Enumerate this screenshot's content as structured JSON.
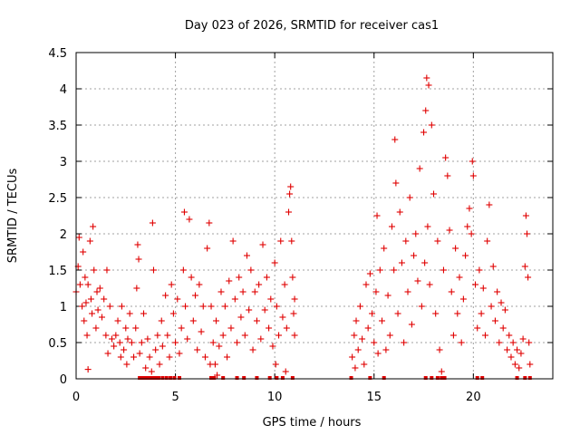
{
  "chart_data": {
    "type": "scatter",
    "title": "Day 023 of 2026, SRMTID for receiver cas1",
    "xlabel": "GPS time / hours",
    "ylabel": "SRMTID / TECUs",
    "xlim": [
      0,
      24
    ],
    "ylim": [
      0,
      4.5
    ],
    "x_ticks": [
      0,
      5,
      10,
      15,
      20
    ],
    "x_tick_labels": [
      "0",
      "5",
      "10",
      "15",
      "20"
    ],
    "y_ticks": [
      0,
      0.5,
      1,
      1.5,
      2,
      2.5,
      3,
      3.5,
      4,
      4.5
    ],
    "y_tick_labels": [
      "0",
      "0.5",
      "1",
      "1.5",
      "2",
      "2.5",
      "3",
      "3.5",
      "4",
      "4.5"
    ],
    "grid": true,
    "marker": "+",
    "color": "#e00000",
    "series": [
      {
        "name": "SRMTID",
        "points": [
          [
            0.0,
            1.2
          ],
          [
            0.1,
            1.55
          ],
          [
            0.15,
            1.95
          ],
          [
            0.2,
            1.3
          ],
          [
            0.3,
            1.0
          ],
          [
            0.35,
            1.75
          ],
          [
            0.4,
            0.8
          ],
          [
            0.45,
            1.4
          ],
          [
            0.5,
            1.05
          ],
          [
            0.55,
            0.6
          ],
          [
            0.6,
            1.3
          ],
          [
            0.6,
            0.13
          ],
          [
            0.7,
            1.9
          ],
          [
            0.75,
            1.1
          ],
          [
            0.8,
            0.9
          ],
          [
            0.85,
            2.1
          ],
          [
            0.9,
            1.5
          ],
          [
            1.0,
            0.7
          ],
          [
            1.05,
            1.2
          ],
          [
            1.1,
            0.95
          ],
          [
            1.2,
            1.25
          ],
          [
            1.3,
            0.85
          ],
          [
            1.4,
            1.1
          ],
          [
            1.5,
            0.6
          ],
          [
            1.55,
            1.5
          ],
          [
            1.6,
            0.35
          ],
          [
            1.7,
            1.0
          ],
          [
            1.8,
            0.55
          ],
          [
            1.9,
            0.45
          ],
          [
            2.0,
            0.6
          ],
          [
            2.1,
            0.8
          ],
          [
            2.2,
            0.5
          ],
          [
            2.25,
            0.3
          ],
          [
            2.3,
            1.0
          ],
          [
            2.4,
            0.4
          ],
          [
            2.5,
            0.7
          ],
          [
            2.55,
            0.2
          ],
          [
            2.6,
            0.55
          ],
          [
            2.7,
            0.9
          ],
          [
            2.8,
            0.5
          ],
          [
            2.9,
            0.3
          ],
          [
            3.0,
            0.7
          ],
          [
            3.05,
            1.25
          ],
          [
            3.1,
            1.85
          ],
          [
            3.15,
            1.65
          ],
          [
            3.2,
            0.35
          ],
          [
            3.3,
            0.5
          ],
          [
            3.4,
            0.9
          ],
          [
            3.5,
            0.15
          ],
          [
            3.6,
            0.55
          ],
          [
            3.7,
            0.3
          ],
          [
            3.8,
            0.1
          ],
          [
            3.85,
            2.15
          ],
          [
            3.9,
            1.5
          ],
          [
            4.0,
            0.4
          ],
          [
            4.1,
            0.6
          ],
          [
            4.2,
            0.2
          ],
          [
            4.3,
            0.8
          ],
          [
            4.35,
            0.45
          ],
          [
            4.5,
            1.15
          ],
          [
            4.6,
            0.6
          ],
          [
            4.7,
            0.3
          ],
          [
            4.8,
            1.3
          ],
          [
            4.9,
            0.9
          ],
          [
            5.0,
            0.5
          ],
          [
            5.1,
            1.1
          ],
          [
            5.2,
            0.35
          ],
          [
            5.3,
            0.7
          ],
          [
            5.4,
            1.5
          ],
          [
            5.45,
            2.3
          ],
          [
            5.5,
            1.0
          ],
          [
            5.6,
            0.55
          ],
          [
            5.7,
            2.2
          ],
          [
            5.8,
            1.4
          ],
          [
            5.9,
            0.8
          ],
          [
            6.0,
            1.15
          ],
          [
            6.1,
            0.4
          ],
          [
            6.2,
            1.3
          ],
          [
            6.3,
            0.65
          ],
          [
            6.4,
            1.0
          ],
          [
            6.5,
            0.3
          ],
          [
            6.6,
            1.8
          ],
          [
            6.7,
            2.15
          ],
          [
            6.75,
            0.2
          ],
          [
            6.8,
            1.0
          ],
          [
            6.9,
            0.5
          ],
          [
            7.0,
            0.2
          ],
          [
            7.05,
            0.8
          ],
          [
            7.1,
            0.05
          ],
          [
            7.2,
            0.45
          ],
          [
            7.3,
            1.2
          ],
          [
            7.4,
            0.6
          ],
          [
            7.5,
            1.0
          ],
          [
            7.6,
            0.3
          ],
          [
            7.7,
            1.35
          ],
          [
            7.8,
            0.7
          ],
          [
            7.9,
            1.9
          ],
          [
            8.0,
            1.1
          ],
          [
            8.1,
            0.5
          ],
          [
            8.2,
            1.4
          ],
          [
            8.3,
            0.85
          ],
          [
            8.4,
            1.2
          ],
          [
            8.5,
            0.6
          ],
          [
            8.6,
            1.7
          ],
          [
            8.7,
            0.95
          ],
          [
            8.8,
            1.5
          ],
          [
            8.9,
            0.4
          ],
          [
            9.0,
            1.2
          ],
          [
            9.1,
            0.8
          ],
          [
            9.2,
            1.3
          ],
          [
            9.3,
            0.55
          ],
          [
            9.4,
            1.85
          ],
          [
            9.5,
            0.95
          ],
          [
            9.6,
            1.4
          ],
          [
            9.7,
            0.7
          ],
          [
            9.8,
            1.1
          ],
          [
            9.9,
            0.45
          ],
          [
            10.0,
            1.6
          ],
          [
            10.05,
            0.2
          ],
          [
            10.1,
            1.0
          ],
          [
            10.2,
            0.6
          ],
          [
            10.3,
            1.9
          ],
          [
            10.4,
            0.85
          ],
          [
            10.5,
            1.3
          ],
          [
            10.55,
            0.1
          ],
          [
            10.6,
            0.7
          ],
          [
            10.7,
            2.3
          ],
          [
            10.75,
            2.55
          ],
          [
            10.8,
            2.65
          ],
          [
            10.85,
            1.9
          ],
          [
            10.9,
            1.4
          ],
          [
            10.95,
            0.9
          ],
          [
            11.0,
            0.6
          ],
          [
            11.0,
            1.1
          ],
          [
            13.9,
            0.3
          ],
          [
            14.0,
            0.6
          ],
          [
            14.05,
            0.15
          ],
          [
            14.1,
            0.8
          ],
          [
            14.2,
            0.4
          ],
          [
            14.3,
            1.0
          ],
          [
            14.4,
            0.55
          ],
          [
            14.5,
            0.2
          ],
          [
            14.6,
            1.3
          ],
          [
            14.7,
            0.7
          ],
          [
            14.8,
            1.45
          ],
          [
            14.9,
            0.9
          ],
          [
            15.0,
            0.5
          ],
          [
            15.1,
            1.2
          ],
          [
            15.15,
            2.25
          ],
          [
            15.2,
            0.35
          ],
          [
            15.3,
            1.5
          ],
          [
            15.4,
            0.8
          ],
          [
            15.5,
            1.8
          ],
          [
            15.6,
            0.4
          ],
          [
            15.7,
            1.15
          ],
          [
            15.8,
            0.6
          ],
          [
            15.9,
            2.1
          ],
          [
            16.0,
            1.5
          ],
          [
            16.05,
            3.3
          ],
          [
            16.1,
            2.7
          ],
          [
            16.2,
            0.9
          ],
          [
            16.3,
            2.3
          ],
          [
            16.4,
            1.6
          ],
          [
            16.5,
            0.5
          ],
          [
            16.6,
            1.9
          ],
          [
            16.7,
            1.2
          ],
          [
            16.8,
            2.5
          ],
          [
            16.9,
            0.75
          ],
          [
            17.0,
            1.7
          ],
          [
            17.1,
            2.0
          ],
          [
            17.2,
            1.35
          ],
          [
            17.3,
            2.9
          ],
          [
            17.4,
            1.0
          ],
          [
            17.5,
            3.4
          ],
          [
            17.55,
            1.6
          ],
          [
            17.6,
            3.7
          ],
          [
            17.65,
            4.15
          ],
          [
            17.7,
            2.1
          ],
          [
            17.75,
            4.05
          ],
          [
            17.8,
            1.3
          ],
          [
            17.9,
            3.5
          ],
          [
            18.0,
            2.55
          ],
          [
            18.1,
            0.9
          ],
          [
            18.2,
            1.9
          ],
          [
            18.3,
            0.4
          ],
          [
            18.4,
            0.1
          ],
          [
            18.5,
            1.5
          ],
          [
            18.6,
            3.05
          ],
          [
            18.7,
            2.8
          ],
          [
            18.8,
            2.05
          ],
          [
            18.9,
            1.2
          ],
          [
            19.0,
            0.6
          ],
          [
            19.1,
            1.8
          ],
          [
            19.2,
            0.9
          ],
          [
            19.3,
            1.4
          ],
          [
            19.4,
            0.5
          ],
          [
            19.5,
            1.1
          ],
          [
            19.6,
            1.7
          ],
          [
            19.7,
            2.1
          ],
          [
            19.8,
            2.35
          ],
          [
            19.9,
            2.0
          ],
          [
            19.95,
            3.0
          ],
          [
            20.0,
            2.8
          ],
          [
            20.1,
            1.3
          ],
          [
            20.2,
            0.7
          ],
          [
            20.3,
            1.5
          ],
          [
            20.4,
            0.9
          ],
          [
            20.5,
            1.25
          ],
          [
            20.6,
            0.6
          ],
          [
            20.7,
            1.9
          ],
          [
            20.8,
            2.4
          ],
          [
            20.9,
            1.0
          ],
          [
            21.0,
            1.55
          ],
          [
            21.1,
            0.8
          ],
          [
            21.2,
            1.2
          ],
          [
            21.3,
            0.5
          ],
          [
            21.4,
            1.05
          ],
          [
            21.5,
            0.7
          ],
          [
            21.6,
            0.95
          ],
          [
            21.7,
            0.4
          ],
          [
            21.8,
            0.6
          ],
          [
            21.9,
            0.3
          ],
          [
            22.0,
            0.5
          ],
          [
            22.1,
            0.2
          ],
          [
            22.2,
            0.4
          ],
          [
            22.3,
            0.15
          ],
          [
            22.4,
            0.35
          ],
          [
            22.5,
            0.55
          ],
          [
            22.6,
            1.55
          ],
          [
            22.65,
            2.25
          ],
          [
            22.7,
            2.0
          ],
          [
            22.75,
            1.4
          ],
          [
            22.8,
            0.5
          ],
          [
            22.85,
            0.2
          ]
        ],
        "zero_markers": [
          3.2,
          3.3,
          3.4,
          3.5,
          3.6,
          3.7,
          3.8,
          3.9,
          4.0,
          4.15,
          4.35,
          4.55,
          4.75,
          4.95,
          5.2,
          6.8,
          6.95,
          7.4,
          8.1,
          8.45,
          9.1,
          9.75,
          10.1,
          10.4,
          10.9,
          13.85,
          14.8,
          15.5,
          17.6,
          17.9,
          18.2,
          18.4,
          18.55,
          20.2,
          20.45,
          22.2,
          22.6,
          22.85
        ]
      }
    ]
  }
}
